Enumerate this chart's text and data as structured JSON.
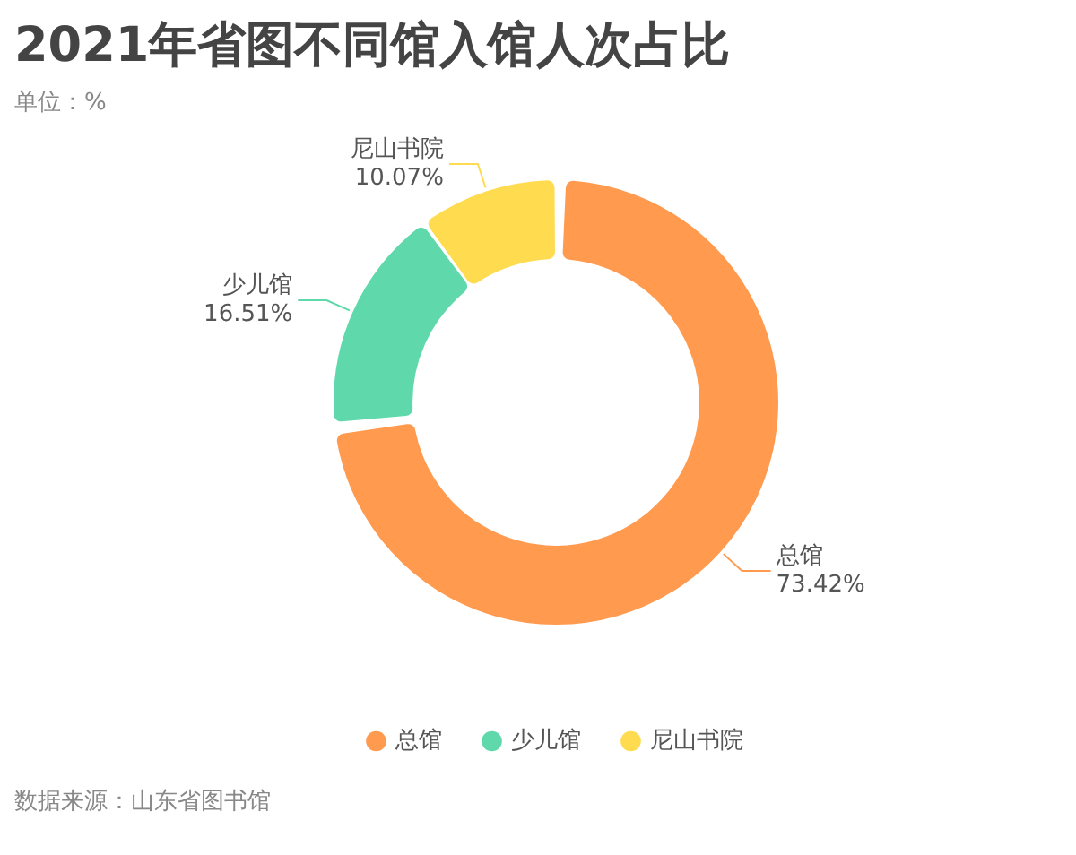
{
  "chart_data": {
    "type": "donut",
    "title": "2021年省图不同馆入馆人次占比",
    "subtitle": "单位：%",
    "categories": [
      "总馆",
      "少儿馆",
      "尼山书院"
    ],
    "values": [
      73.42,
      16.51,
      10.07
    ],
    "value_labels": [
      "73.42%",
      "16.51%",
      "10.07%"
    ],
    "colors": [
      "#ff9a4f",
      "#5fd8ab",
      "#ffdb4f"
    ],
    "legend": "bottom",
    "annotations": [
      "数据来源：山东省图书馆"
    ]
  }
}
